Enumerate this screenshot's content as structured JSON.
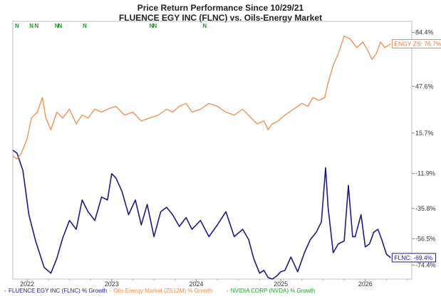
{
  "chart_data": {
    "type": "line",
    "title": "Price Return Performance Since 10/29/21",
    "subtitle": "FLUENCE EGY INC (FLNC)  vs.  Oils-Energy Market",
    "ylabel": "",
    "xlabel": "",
    "y_scale": "linear",
    "ylim": [
      -84,
      92
    ],
    "y_ticks": [
      "84.4%",
      "47.6%",
      "15.7%",
      "-11.9%",
      "-35.8%",
      "-56.5%",
      "-74.4%"
    ],
    "y_tick_values": [
      84.4,
      47.6,
      15.7,
      -11.9,
      -35.8,
      -56.5,
      -74.4
    ],
    "x_ticks": [
      "2022",
      "2023",
      "2024",
      "2025",
      "2026"
    ],
    "x_tick_values": [
      2022.0,
      2023.0,
      2024.0,
      2025.0,
      2026.0
    ],
    "xlim": [
      2021.83,
      2026.55
    ],
    "grid": false,
    "legend_position": "bottom",
    "series": [
      {
        "name": "FLUENCE EGY INC (FLNC) % Growth",
        "color": "#1a1a8c",
        "end_label": "FLNC: -69.4%",
        "x": [
          2021.83,
          2021.88,
          2021.95,
          2022.02,
          2022.1,
          2022.2,
          2022.28,
          2022.35,
          2022.42,
          2022.5,
          2022.58,
          2022.65,
          2022.72,
          2022.8,
          2022.88,
          2022.95,
          2023.0,
          2023.05,
          2023.12,
          2023.2,
          2023.28,
          2023.35,
          2023.42,
          2023.5,
          2023.58,
          2023.65,
          2023.72,
          2023.8,
          2023.88,
          2023.95,
          2024.05,
          2024.15,
          2024.25,
          2024.35,
          2024.45,
          2024.55,
          2024.62,
          2024.68,
          2024.75,
          2024.8,
          2024.85,
          2024.9,
          2024.95,
          2025.0,
          2025.05,
          2025.12,
          2025.2,
          2025.28,
          2025.35,
          2025.42,
          2025.48,
          2025.53,
          2025.56,
          2025.62,
          2025.68,
          2025.75,
          2025.8,
          2025.85,
          2025.88,
          2025.95,
          2026.0,
          2026.05,
          2026.1,
          2026.15,
          2026.2,
          2026.25,
          2026.3
        ],
        "values": [
          4,
          2,
          -10,
          -40,
          -58,
          -76,
          -80,
          -70,
          -56,
          -44,
          -50,
          -30,
          -38,
          -44,
          -28,
          -30,
          -12,
          -15,
          -24,
          -40,
          -30,
          -47,
          -33,
          -55,
          -38,
          -35,
          -40,
          -48,
          -42,
          -50,
          -44,
          -55,
          -47,
          -38,
          -55,
          -50,
          -57,
          -70,
          -80,
          -78,
          -83,
          -84,
          -82,
          -79,
          -78,
          -69,
          -79,
          -66,
          -57,
          -52,
          -45,
          -8,
          -35,
          -66,
          -60,
          -58,
          -20,
          -55,
          -55,
          -40,
          -62,
          -60,
          -52,
          -50,
          -58,
          -67,
          -69.4
        ]
      },
      {
        "name": "Oils-Energy Market (ZS12M) % Growth",
        "color": "#f08c46",
        "end_label": "ENGY ZS: 76.7%",
        "x": [
          2021.83,
          2021.88,
          2021.93,
          2022.0,
          2022.05,
          2022.12,
          2022.18,
          2022.22,
          2022.28,
          2022.35,
          2022.42,
          2022.5,
          2022.58,
          2022.65,
          2022.72,
          2022.8,
          2022.88,
          2022.95,
          2023.05,
          2023.15,
          2023.25,
          2023.35,
          2023.45,
          2023.55,
          2023.65,
          2023.72,
          2023.8,
          2023.88,
          2023.95,
          2024.05,
          2024.15,
          2024.25,
          2024.35,
          2024.45,
          2024.55,
          2024.65,
          2024.72,
          2024.8,
          2024.85,
          2024.9,
          2024.97,
          2025.05,
          2025.15,
          2025.25,
          2025.32,
          2025.38,
          2025.45,
          2025.52,
          2025.56,
          2025.62,
          2025.68,
          2025.75,
          2025.82,
          2025.9,
          2025.97,
          2026.03,
          2026.08,
          2026.13,
          2026.18,
          2026.23,
          2026.3
        ],
        "values": [
          0,
          -2,
          2,
          12,
          26,
          30,
          40,
          26,
          18,
          30,
          26,
          32,
          22,
          28,
          26,
          32,
          30,
          32,
          34,
          28,
          30,
          24,
          26,
          28,
          32,
          30,
          34,
          36,
          30,
          32,
          36,
          34,
          30,
          28,
          32,
          26,
          22,
          24,
          18,
          22,
          24,
          28,
          32,
          36,
          34,
          40,
          38,
          40,
          50,
          62,
          70,
          82,
          80,
          74,
          78,
          72,
          66,
          70,
          78,
          74,
          76.7
        ]
      },
      {
        "name": "NVIDIA CORP (NVDA) % Growth",
        "color": "#16a21e",
        "marker_label": "N",
        "markers_x": [
          2021.88,
          2022.05,
          2022.11,
          2022.35,
          2022.39,
          2022.68,
          2023.47,
          2023.51,
          2024.1
        ]
      }
    ]
  }
}
